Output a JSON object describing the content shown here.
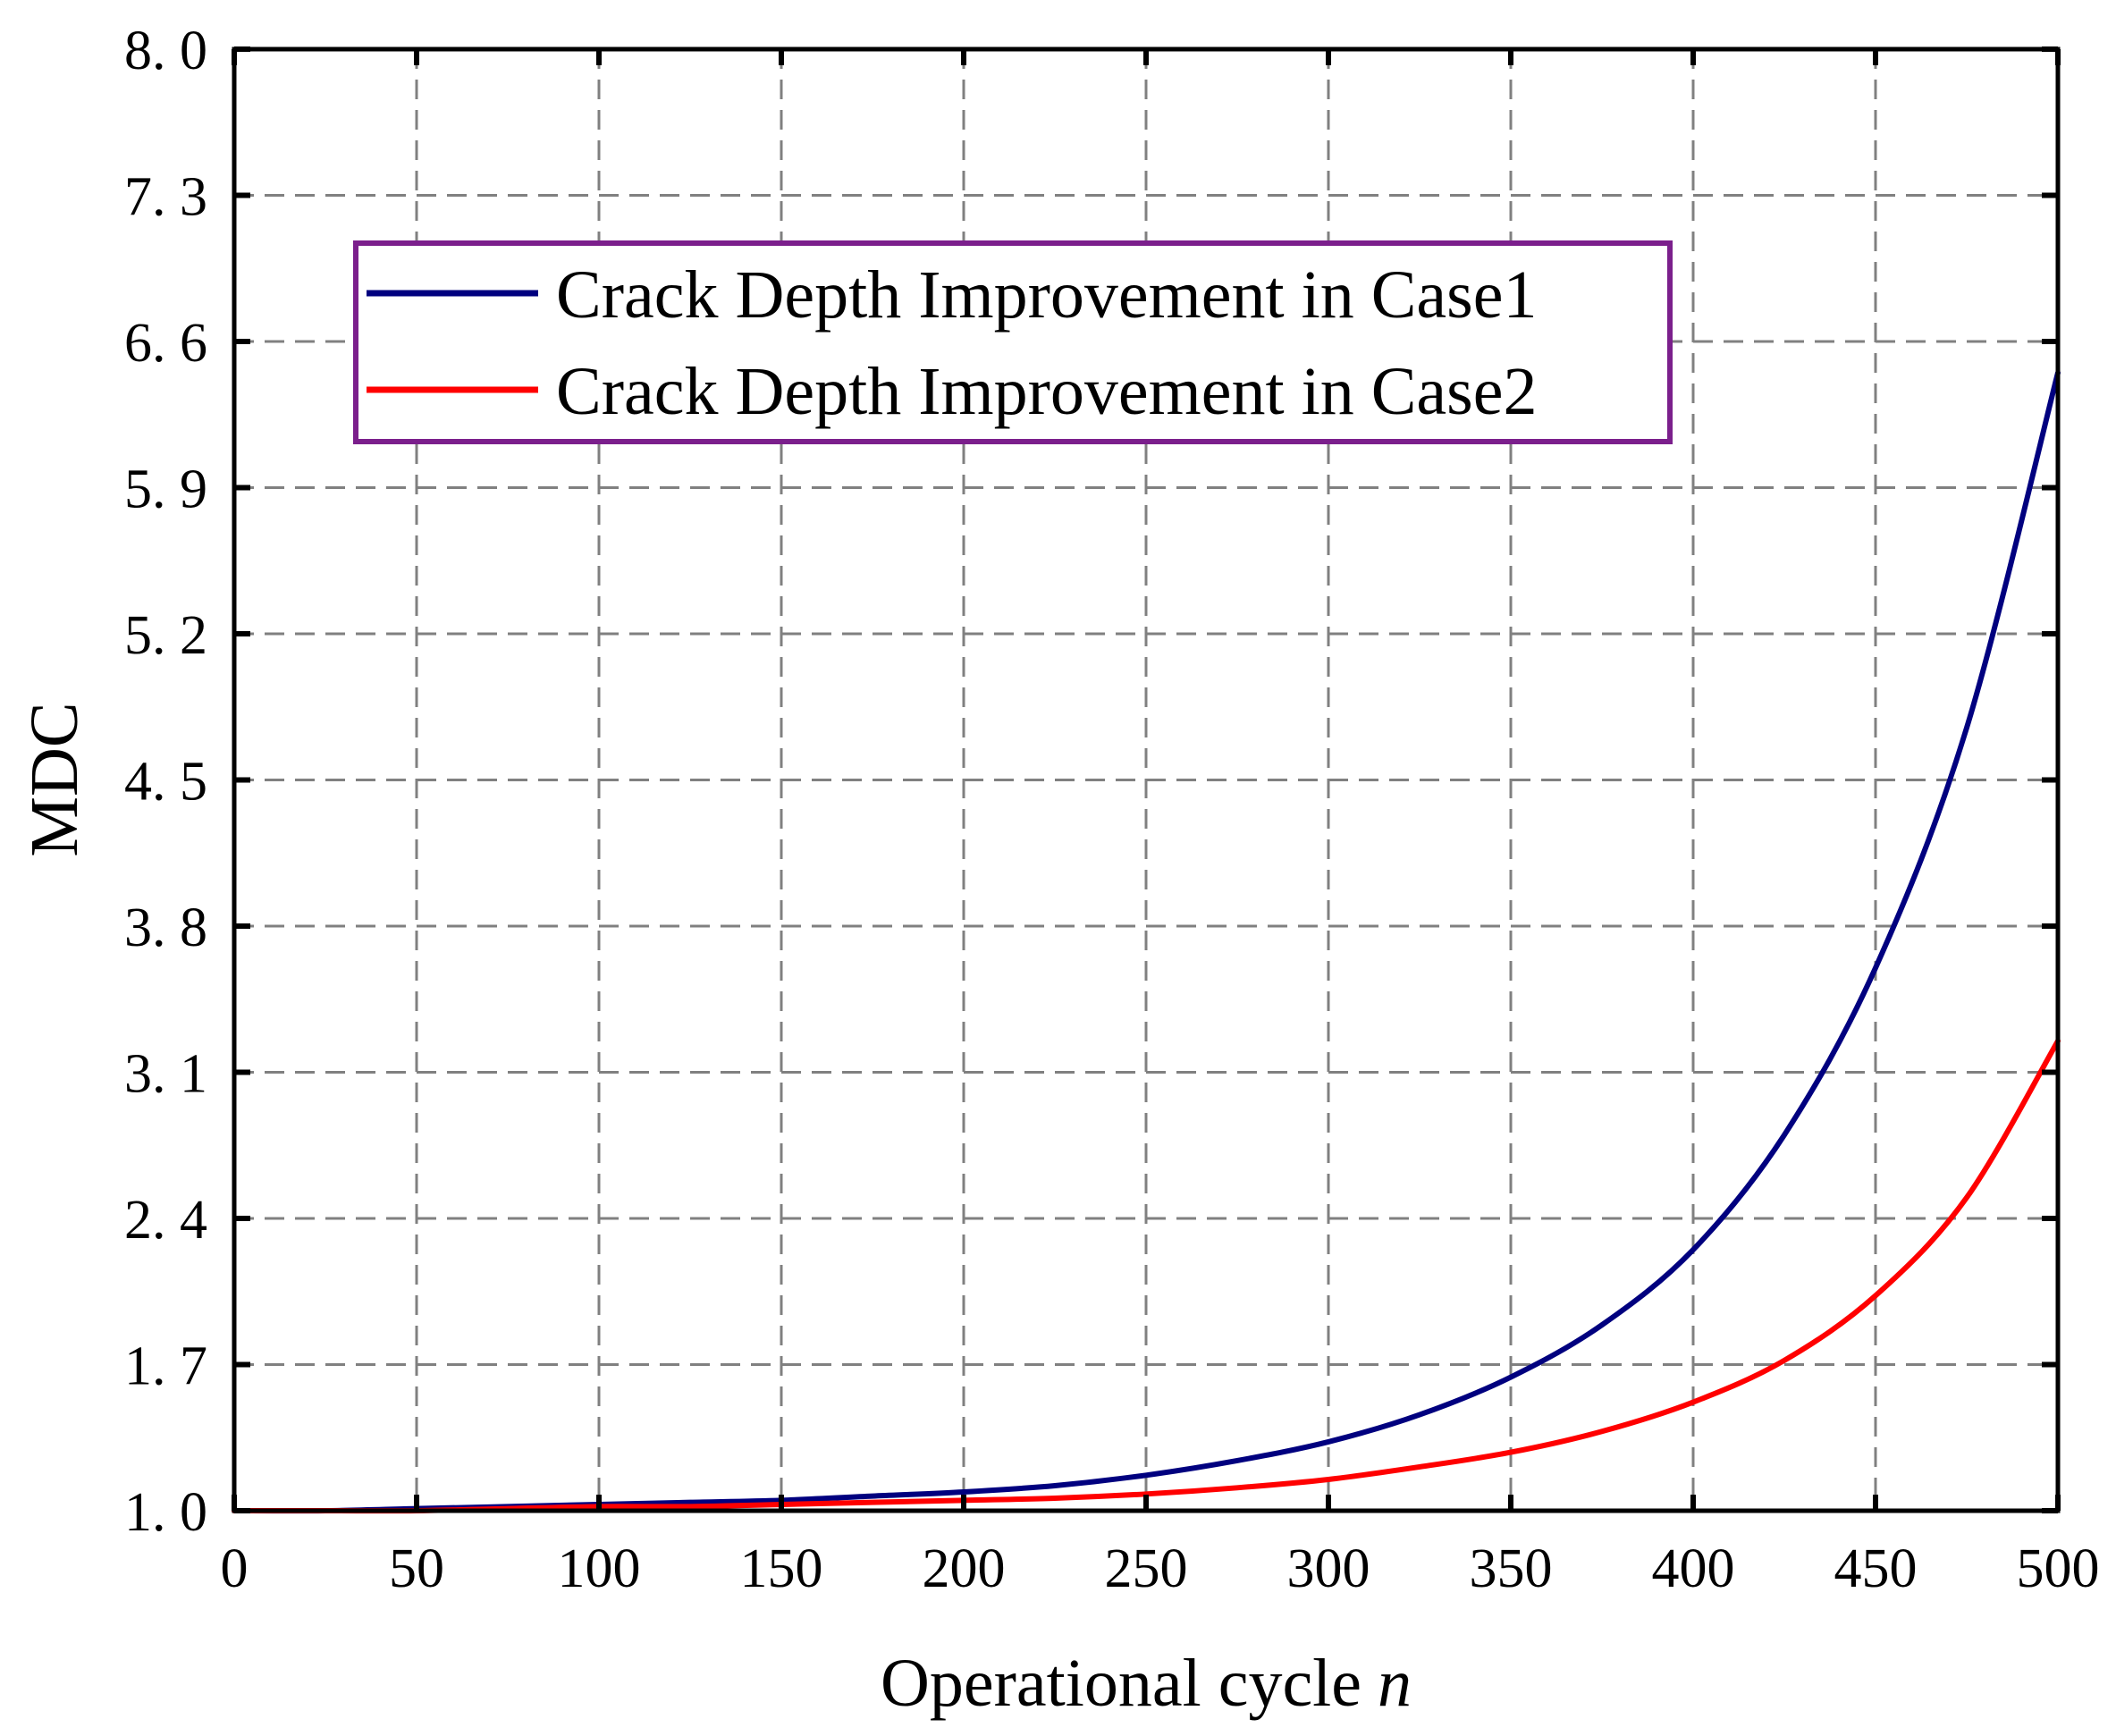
{
  "chart_data": {
    "type": "line",
    "xlabel": "Operational cycle",
    "xlabel_var": "n",
    "ylabel": "MDC",
    "xlim": [
      0,
      500
    ],
    "ylim": [
      1.0,
      8.0
    ],
    "xticks": [
      "0",
      "50",
      "100",
      "150",
      "200",
      "250",
      "300",
      "350",
      "400",
      "450",
      "500"
    ],
    "yticks": [
      "1. 0",
      "1. 7",
      "2. 4",
      "3. 1",
      "3. 8",
      "4. 5",
      "5. 2",
      "5. 9",
      "6. 6",
      "7. 3",
      "8. 0"
    ],
    "grid": true,
    "legend_position": "top-left",
    "series": [
      {
        "name": "Crack Depth Improvement in Case1",
        "color": "#00007f",
        "x": [
          0,
          25,
          50,
          75,
          100,
          125,
          150,
          175,
          200,
          225,
          250,
          275,
          300,
          325,
          350,
          375,
          400,
          425,
          450,
          475,
          500
        ],
        "y": [
          1.0,
          1.0,
          1.01,
          1.02,
          1.03,
          1.04,
          1.05,
          1.07,
          1.09,
          1.12,
          1.17,
          1.24,
          1.33,
          1.46,
          1.64,
          1.89,
          2.25,
          2.8,
          3.6,
          4.75,
          6.45
        ]
      },
      {
        "name": "Crack Depth Improvement in Case2",
        "color": "#ff0000",
        "x": [
          0,
          25,
          50,
          75,
          100,
          125,
          150,
          175,
          200,
          225,
          250,
          275,
          300,
          325,
          350,
          375,
          400,
          425,
          450,
          475,
          500
        ],
        "y": [
          1.0,
          1.0,
          1.0,
          1.01,
          1.02,
          1.02,
          1.03,
          1.04,
          1.05,
          1.06,
          1.08,
          1.11,
          1.15,
          1.21,
          1.28,
          1.38,
          1.52,
          1.72,
          2.03,
          2.5,
          3.25
        ]
      }
    ]
  }
}
